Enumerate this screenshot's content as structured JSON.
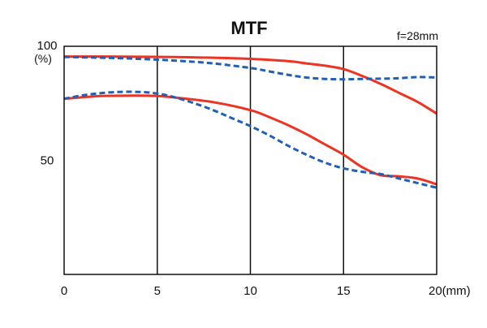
{
  "chart_data": {
    "type": "line",
    "title": "MTF",
    "annotation": "f=28mm",
    "y_axis": {
      "top_label": "100",
      "unit_label": "(%)",
      "range": [
        0,
        100
      ],
      "ticks": [
        {
          "value": 50,
          "label": "50"
        }
      ]
    },
    "x_axis": {
      "range": [
        0,
        20
      ],
      "ticks": [
        {
          "value": 0,
          "label": "0"
        },
        {
          "value": 5,
          "label": "5"
        },
        {
          "value": 10,
          "label": "10"
        },
        {
          "value": 15,
          "label": "15"
        },
        {
          "value": 20,
          "label": "20(mm)"
        }
      ],
      "vertical_gridlines": [
        5,
        10,
        15
      ]
    },
    "grid": "vertical lines at x ticks",
    "legend": "none",
    "series": [
      {
        "color": "#ee3322",
        "style": "solid",
        "points": [
          [
            0,
            95.5
          ],
          [
            2,
            95.5
          ],
          [
            4,
            95.4
          ],
          [
            6,
            95.3
          ],
          [
            8,
            95.0
          ],
          [
            10,
            94.5
          ],
          [
            12,
            93.5
          ],
          [
            13,
            92.5
          ],
          [
            14,
            91.5
          ],
          [
            15,
            90.0
          ],
          [
            16,
            87.0
          ],
          [
            17,
            83.5
          ],
          [
            18,
            79.5
          ],
          [
            19,
            75.5
          ],
          [
            20,
            70.5
          ]
        ]
      },
      {
        "color": "#1f5fb5",
        "style": "dashed",
        "points": [
          [
            0,
            95.3
          ],
          [
            2,
            95.0
          ],
          [
            4,
            94.5
          ],
          [
            6,
            93.7
          ],
          [
            8,
            92.5
          ],
          [
            10,
            90.5
          ],
          [
            11,
            89.0
          ],
          [
            12,
            87.5
          ],
          [
            13,
            86.3
          ],
          [
            14,
            85.7
          ],
          [
            15,
            85.5
          ],
          [
            16,
            85.7
          ],
          [
            17,
            85.8
          ],
          [
            18,
            86.0
          ],
          [
            19,
            86.5
          ],
          [
            20,
            86.3
          ]
        ]
      },
      {
        "color": "#ee3322",
        "style": "solid",
        "points": [
          [
            0,
            77.0
          ],
          [
            2,
            78.2
          ],
          [
            4,
            78.4
          ],
          [
            5,
            78.2
          ],
          [
            6,
            77.5
          ],
          [
            8,
            75.5
          ],
          [
            10,
            72.0
          ],
          [
            11,
            69.0
          ],
          [
            12,
            65.5
          ],
          [
            13,
            61.5
          ],
          [
            14,
            57.0
          ],
          [
            15,
            52.5
          ],
          [
            16,
            47.0
          ],
          [
            17,
            43.5
          ],
          [
            18,
            43.0
          ],
          [
            19,
            42.0
          ],
          [
            20,
            39.5
          ]
        ]
      },
      {
        "color": "#1f5fb5",
        "style": "dashed",
        "points": [
          [
            0,
            77.0
          ],
          [
            1,
            78.5
          ],
          [
            2,
            79.5
          ],
          [
            3,
            80.0
          ],
          [
            4,
            80.0
          ],
          [
            5,
            79.3
          ],
          [
            6,
            77.5
          ],
          [
            7,
            75.0
          ],
          [
            8,
            72.0
          ],
          [
            9,
            68.5
          ],
          [
            10,
            65.0
          ],
          [
            11,
            61.0
          ],
          [
            12,
            56.5
          ],
          [
            13,
            52.5
          ],
          [
            14,
            49.0
          ],
          [
            15,
            46.5
          ],
          [
            16,
            45.0
          ],
          [
            17,
            44.0
          ],
          [
            18,
            42.0
          ],
          [
            19,
            40.0
          ],
          [
            20,
            38.0
          ]
        ]
      }
    ]
  }
}
